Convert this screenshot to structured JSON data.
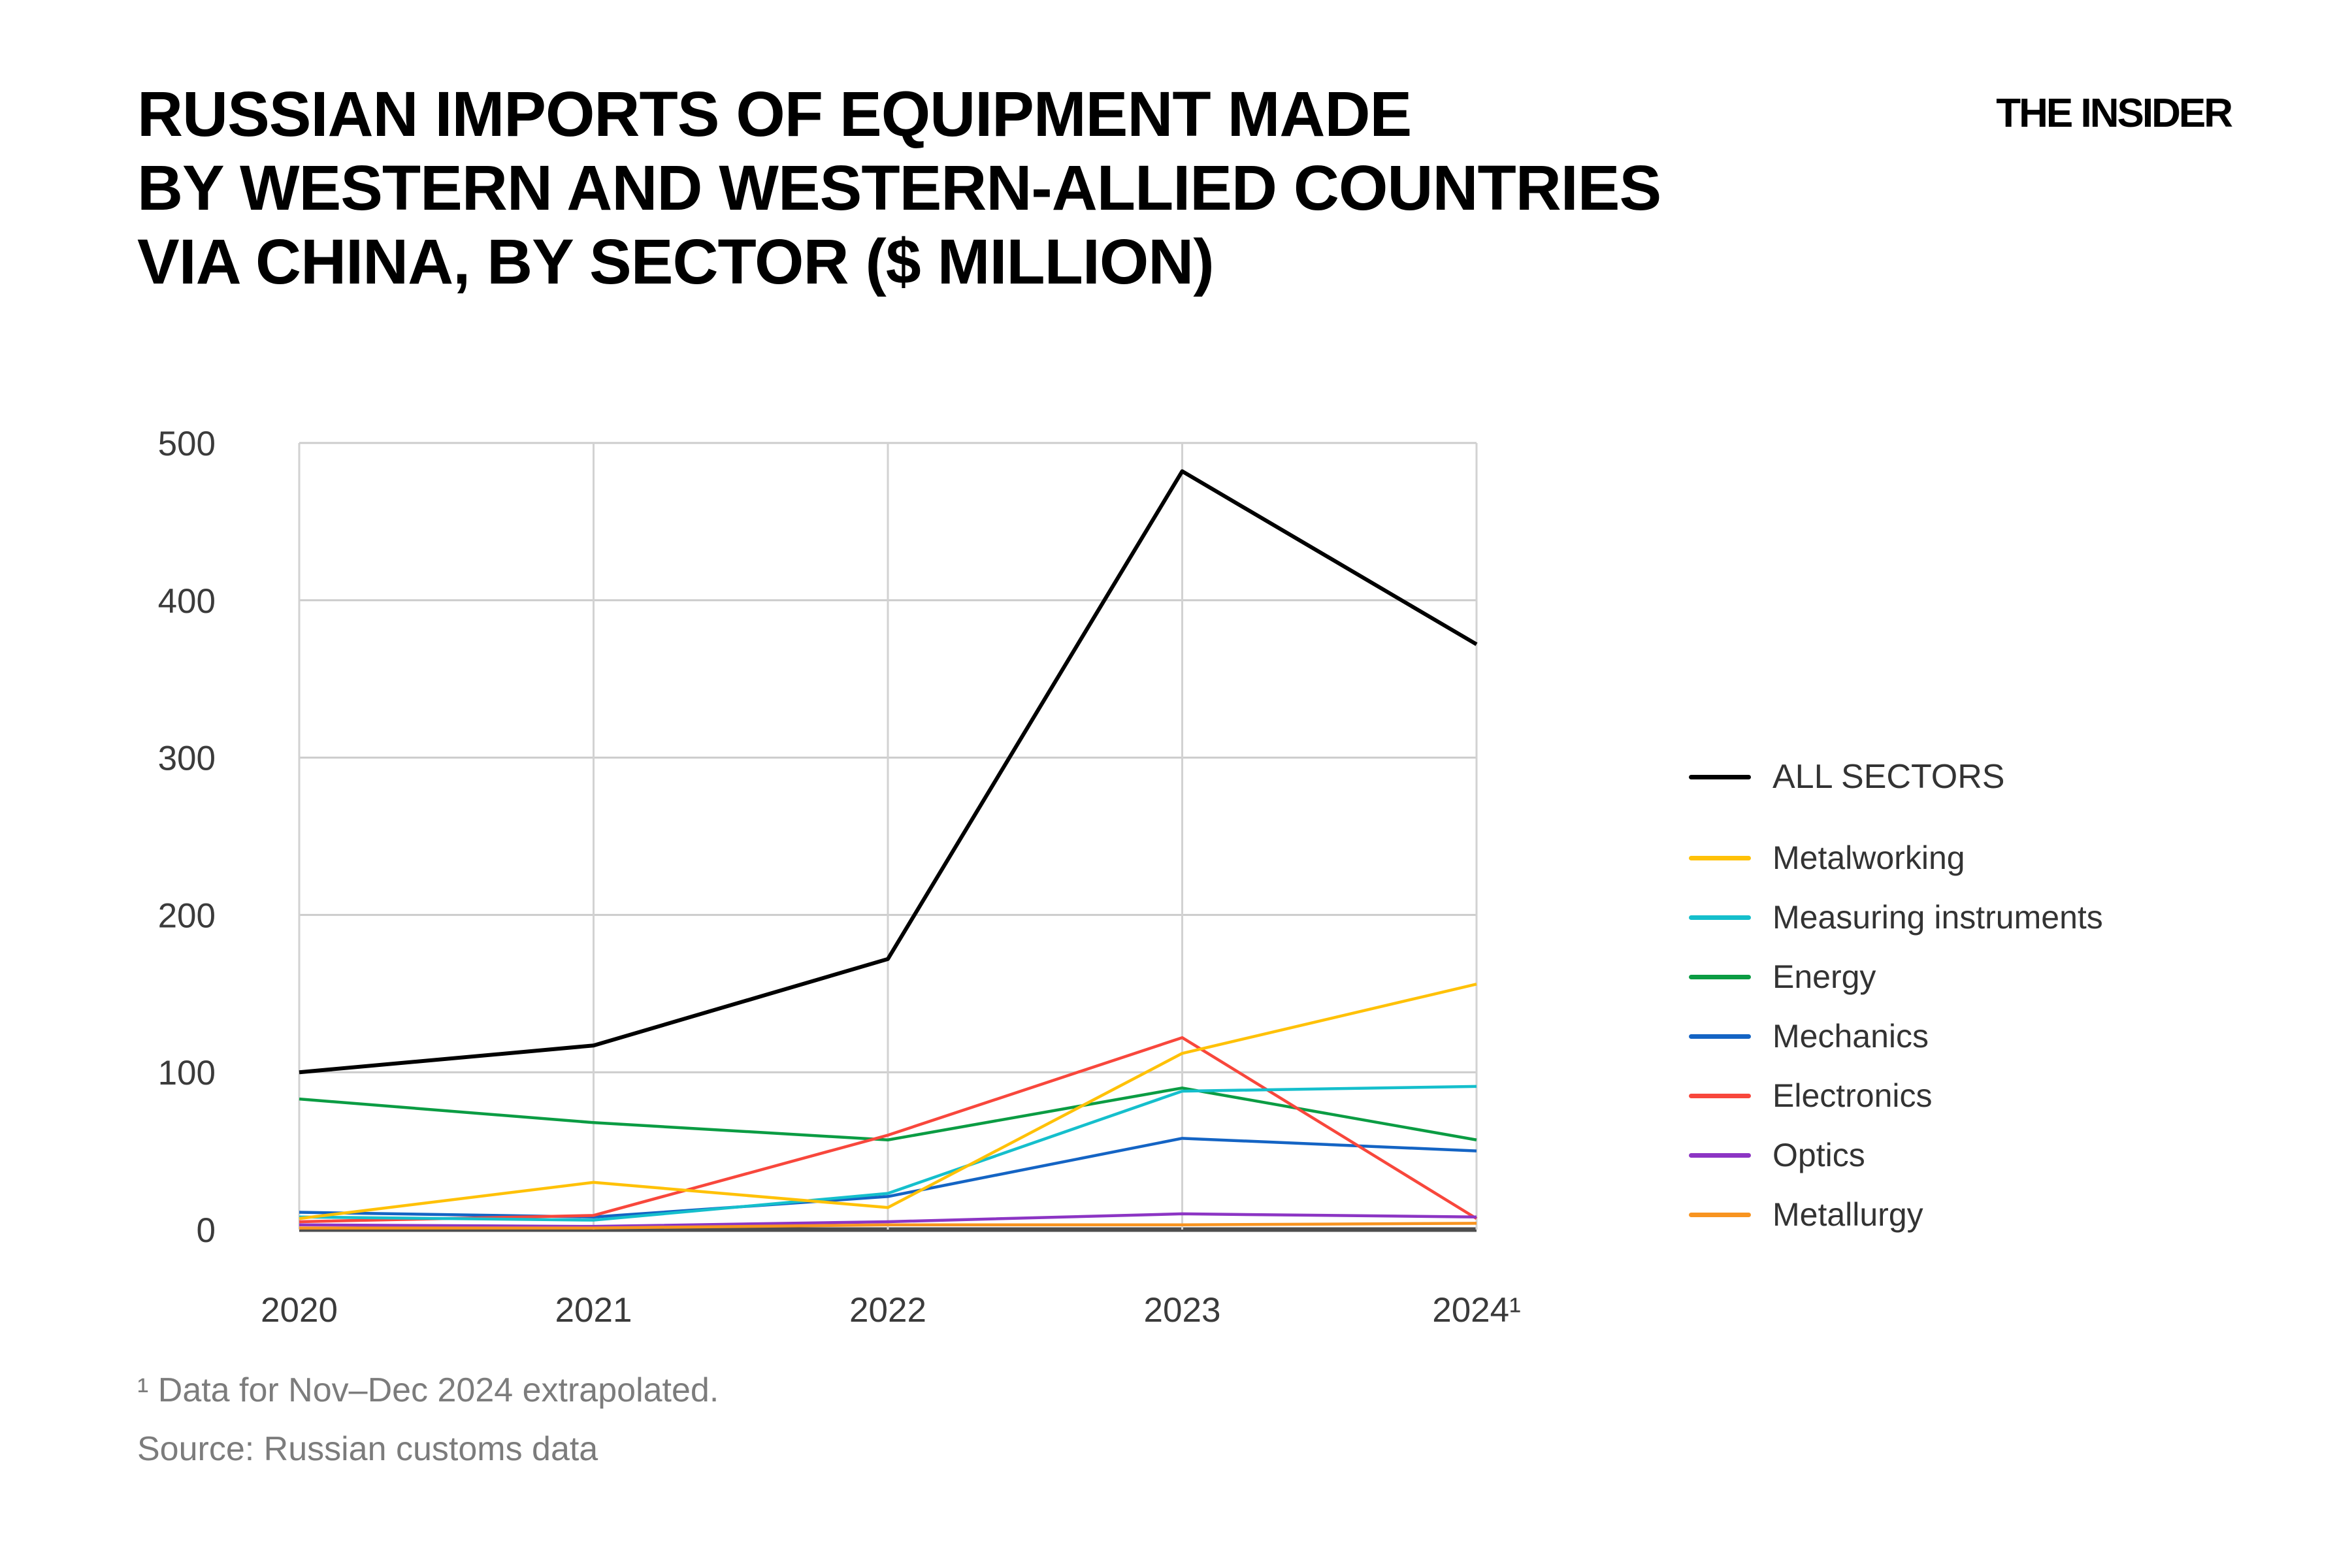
{
  "page": {
    "background": "#ffffff"
  },
  "header": {
    "title_lines": [
      "RUSSIAN IMPORTS OF EQUIPMENT MADE",
      "BY WESTERN AND WESTERN-ALLIED COUNTRIES",
      "VIA CHINA, BY SECTOR ($ MILLION)"
    ],
    "logo": "THE INSIDER"
  },
  "chart_data": {
    "type": "line",
    "x": [
      2020,
      2021,
      2022,
      2023,
      2024
    ],
    "x_tick_labels": [
      "2020",
      "2021",
      "2022",
      "2023",
      "2024¹"
    ],
    "y_ticks": [
      0,
      100,
      200,
      300,
      400,
      500
    ],
    "ylim": [
      0,
      500
    ],
    "grid": true,
    "legend_position": "right",
    "colors": {
      "grid_line": "#cccccc",
      "vertical_grid_line": "#d2d2d2",
      "zero_axis_line": "#4d4d4d",
      "tick_label": "#3b3b3b"
    },
    "series": [
      {
        "name": "ALL SECTORS",
        "color": "#000000",
        "values": [
          100,
          117,
          172,
          482,
          372
        ]
      },
      {
        "name": "Metalworking",
        "color": "#FFC107",
        "values": [
          7,
          30,
          14,
          112,
          156
        ]
      },
      {
        "name": "Measuring instruments",
        "color": "#15BFCC",
        "values": [
          8,
          6,
          23,
          88,
          91
        ]
      },
      {
        "name": "Energy",
        "color": "#0B9C43",
        "values": [
          83,
          68,
          57,
          90,
          57
        ]
      },
      {
        "name": "Mechanics",
        "color": "#1464C4",
        "values": [
          11,
          8,
          21,
          58,
          50
        ]
      },
      {
        "name": "Electronics",
        "color": "#F8473C",
        "values": [
          5,
          9,
          60,
          122,
          7
        ]
      },
      {
        "name": "Optics",
        "color": "#8C35C4",
        "values": [
          3,
          2,
          5,
          10,
          8
        ]
      },
      {
        "name": "Metallurgy",
        "color": "#F89420",
        "values": [
          1,
          1,
          3,
          3,
          4
        ]
      }
    ]
  },
  "footnotes": {
    "note1": "¹ Data for Nov–Dec 2024 extrapolated.",
    "source": "Source: Russian customs data"
  }
}
